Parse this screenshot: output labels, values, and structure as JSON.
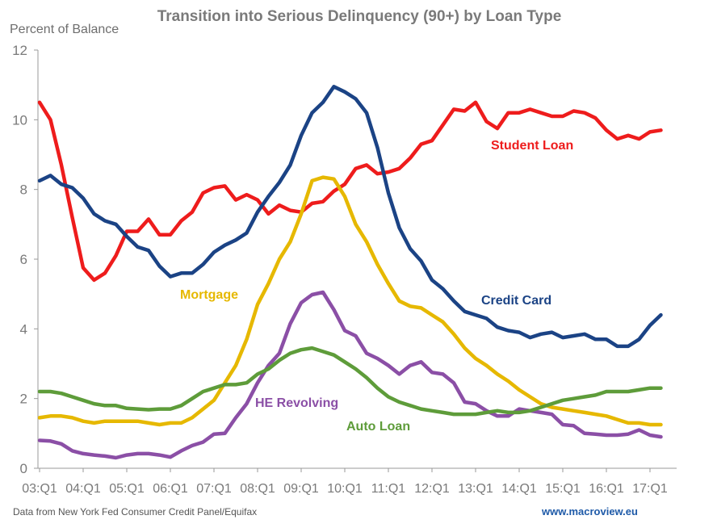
{
  "chart_data": {
    "type": "line",
    "title": "Transition into Serious Delinquency (90+) by Loan Type",
    "ylabel": "Percent of Balance",
    "xlabel": "",
    "ylim": [
      0,
      12
    ],
    "yticks": [
      "0",
      "2",
      "4",
      "6",
      "8",
      "10",
      "12"
    ],
    "xtick_labels": [
      "03:Q1",
      "04:Q1",
      "05:Q1",
      "06:Q1",
      "07:Q1",
      "08:Q1",
      "09:Q1",
      "10:Q1",
      "11:Q1",
      "12:Q1",
      "13:Q1",
      "14:Q1",
      "15:Q1",
      "16:Q1",
      "17:Q1"
    ],
    "x_start_year": 2003,
    "points": 58,
    "grid": false,
    "series": [
      {
        "name": "Student Loan",
        "color": "#ee1c1c",
        "values": [
          10.5,
          10.0,
          8.7,
          7.2,
          5.75,
          5.4,
          5.6,
          6.1,
          6.8,
          6.8,
          7.15,
          6.7,
          6.7,
          7.1,
          7.35,
          7.9,
          8.05,
          8.1,
          7.7,
          7.85,
          7.7,
          7.3,
          7.55,
          7.4,
          7.35,
          7.6,
          7.65,
          7.95,
          8.15,
          8.6,
          8.7,
          8.45,
          8.5,
          8.6,
          8.9,
          9.3,
          9.4,
          9.85,
          10.3,
          10.25,
          10.5,
          9.95,
          9.75,
          10.2,
          10.2,
          10.3,
          10.2,
          10.1,
          10.1,
          10.25,
          10.2,
          10.05,
          9.7,
          9.45,
          9.55,
          9.45,
          9.65,
          9.7
        ]
      },
      {
        "name": "Credit Card",
        "color": "#1b4385",
        "values": [
          8.25,
          8.4,
          8.15,
          8.05,
          7.75,
          7.3,
          7.1,
          7.0,
          6.65,
          6.35,
          6.25,
          5.8,
          5.5,
          5.6,
          5.6,
          5.85,
          6.2,
          6.4,
          6.55,
          6.75,
          7.35,
          7.8,
          8.2,
          8.7,
          9.55,
          10.2,
          10.5,
          10.95,
          10.8,
          10.6,
          10.2,
          9.2,
          7.9,
          6.9,
          6.3,
          5.95,
          5.4,
          5.15,
          4.8,
          4.5,
          4.4,
          4.3,
          4.05,
          3.95,
          3.9,
          3.75,
          3.85,
          3.9,
          3.75,
          3.8,
          3.85,
          3.7,
          3.7,
          3.5,
          3.5,
          3.7,
          4.1,
          4.4
        ]
      },
      {
        "name": "Mortgage",
        "color": "#e6b800",
        "values": [
          1.45,
          1.5,
          1.5,
          1.45,
          1.35,
          1.3,
          1.35,
          1.35,
          1.35,
          1.35,
          1.3,
          1.25,
          1.3,
          1.3,
          1.45,
          1.7,
          1.95,
          2.45,
          2.95,
          3.7,
          4.7,
          5.3,
          6.0,
          6.5,
          7.3,
          8.25,
          8.35,
          8.3,
          7.8,
          7.0,
          6.5,
          5.85,
          5.3,
          4.8,
          4.65,
          4.6,
          4.4,
          4.2,
          3.85,
          3.45,
          3.15,
          2.95,
          2.7,
          2.5,
          2.25,
          2.05,
          1.85,
          1.75,
          1.7,
          1.65,
          1.6,
          1.55,
          1.5,
          1.4,
          1.3,
          1.3,
          1.25,
          1.25
        ]
      },
      {
        "name": "HE Revolving",
        "color": "#8b4fa6",
        "values": [
          0.8,
          0.78,
          0.7,
          0.5,
          0.42,
          0.38,
          0.35,
          0.3,
          0.38,
          0.42,
          0.42,
          0.38,
          0.32,
          0.5,
          0.65,
          0.75,
          0.98,
          1.0,
          1.45,
          1.85,
          2.45,
          2.95,
          3.3,
          4.15,
          4.75,
          4.98,
          5.05,
          4.55,
          3.95,
          3.8,
          3.3,
          3.15,
          2.95,
          2.7,
          2.95,
          3.05,
          2.75,
          2.7,
          2.45,
          1.9,
          1.85,
          1.65,
          1.5,
          1.5,
          1.7,
          1.65,
          1.6,
          1.55,
          1.25,
          1.22,
          1.0,
          0.98,
          0.95,
          0.95,
          0.98,
          1.1,
          0.95,
          0.9
        ]
      },
      {
        "name": "Auto Loan",
        "color": "#5e9c3a",
        "values": [
          2.2,
          2.2,
          2.15,
          2.05,
          1.95,
          1.85,
          1.8,
          1.8,
          1.72,
          1.7,
          1.68,
          1.7,
          1.7,
          1.8,
          2.0,
          2.2,
          2.3,
          2.4,
          2.4,
          2.45,
          2.7,
          2.85,
          3.1,
          3.3,
          3.4,
          3.45,
          3.35,
          3.25,
          3.05,
          2.85,
          2.6,
          2.3,
          2.05,
          1.9,
          1.8,
          1.7,
          1.65,
          1.6,
          1.55,
          1.55,
          1.55,
          1.6,
          1.65,
          1.6,
          1.6,
          1.65,
          1.75,
          1.85,
          1.95,
          2.0,
          2.05,
          2.1,
          2.2,
          2.2,
          2.2,
          2.25,
          2.3,
          2.3
        ]
      }
    ]
  },
  "series_labels": {
    "student_loan": "Student Loan",
    "credit_card": "Credit Card",
    "mortgage": "Mortgage",
    "he_revolving": "HE Revolving",
    "auto_loan": "Auto Loan"
  },
  "footer": {
    "source": "Data from New York Fed Consumer Credit Panel/Equifax",
    "website": "www.macroview.eu"
  },
  "colors": {
    "title": "#7a7a7a",
    "axis": "#9a9a9a",
    "website": "#1e5aa8",
    "source": "#555555"
  }
}
